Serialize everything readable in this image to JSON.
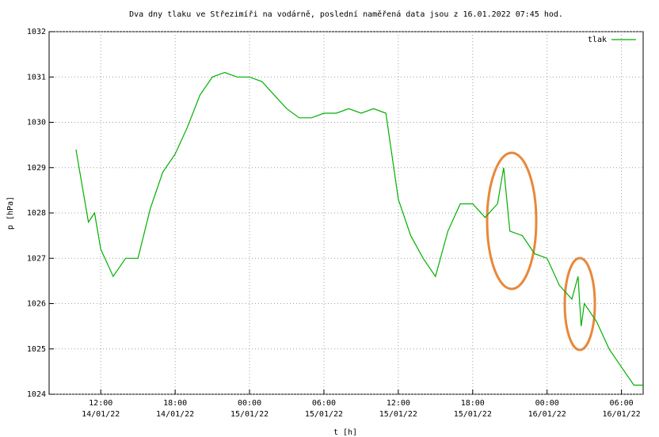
{
  "chart_data": {
    "type": "line",
    "title": "Dva dny tlaku ve Střezimíři na vodárně, poslední naměřená data jsou z 16.01.2022 07:45 hod.",
    "x_label": "t [h]",
    "y_label": "p [hPa]",
    "x": [
      "14/01/22 10:00",
      "14/01/22 11:00",
      "14/01/22 11:30",
      "14/01/22 12:00",
      "14/01/22 13:00",
      "14/01/22 14:00",
      "14/01/22 15:00",
      "14/01/22 16:00",
      "14/01/22 17:00",
      "14/01/22 18:00",
      "14/01/22 19:00",
      "14/01/22 20:00",
      "14/01/22 21:00",
      "14/01/22 22:00",
      "14/01/22 23:00",
      "15/01/22 00:00",
      "15/01/22 01:00",
      "15/01/22 02:00",
      "15/01/22 03:00",
      "15/01/22 04:00",
      "15/01/22 05:00",
      "15/01/22 06:00",
      "15/01/22 07:00",
      "15/01/22 08:00",
      "15/01/22 09:00",
      "15/01/22 10:00",
      "15/01/22 11:00",
      "15/01/22 12:00",
      "15/01/22 13:00",
      "15/01/22 14:00",
      "15/01/22 15:00",
      "15/01/22 16:00",
      "15/01/22 17:00",
      "15/01/22 18:00",
      "15/01/22 19:00",
      "15/01/22 20:00",
      "15/01/22 20:30",
      "15/01/22 21:00",
      "15/01/22 22:00",
      "15/01/22 23:00",
      "16/01/22 00:00",
      "16/01/22 01:00",
      "16/01/22 02:00",
      "16/01/22 02:30",
      "16/01/22 02:45",
      "16/01/22 03:00",
      "16/01/22 04:00",
      "16/01/22 05:00",
      "16/01/22 06:00",
      "16/01/22 07:00",
      "16/01/22 07:45"
    ],
    "series": [
      {
        "name": "tlak",
        "color": "#00b000",
        "values": [
          1029.4,
          1027.8,
          1028.0,
          1027.2,
          1026.6,
          1027.0,
          1027.0,
          1028.1,
          1028.9,
          1029.3,
          1029.9,
          1030.6,
          1031.0,
          1031.1,
          1031.0,
          1031.0,
          1030.9,
          1030.6,
          1030.3,
          1030.1,
          1030.1,
          1030.2,
          1030.2,
          1030.3,
          1030.2,
          1030.3,
          1030.2,
          1028.3,
          1027.5,
          1027.0,
          1026.6,
          1027.6,
          1028.2,
          1028.2,
          1027.9,
          1028.2,
          1029.0,
          1027.6,
          1027.5,
          1027.1,
          1027.0,
          1026.4,
          1026.1,
          1026.6,
          1025.5,
          1026.0,
          1025.6,
          1025.0,
          1024.6,
          1024.2,
          1024.2
        ]
      }
    ],
    "xlim": [
      "14/01/22 07:50",
      "16/01/22 07:45"
    ],
    "xticks": [
      {
        "value": "14/01/22 12:00",
        "label": [
          "12:00",
          "14/01/22"
        ]
      },
      {
        "value": "14/01/22 18:00",
        "label": [
          "18:00",
          "14/01/22"
        ]
      },
      {
        "value": "15/01/22 00:00",
        "label": [
          "00:00",
          "15/01/22"
        ]
      },
      {
        "value": "15/01/22 06:00",
        "label": [
          "06:00",
          "15/01/22"
        ]
      },
      {
        "value": "15/01/22 12:00",
        "label": [
          "12:00",
          "15/01/22"
        ]
      },
      {
        "value": "15/01/22 18:00",
        "label": [
          "18:00",
          "15/01/22"
        ]
      },
      {
        "value": "16/01/22 00:00",
        "label": [
          "00:00",
          "16/01/22"
        ]
      },
      {
        "value": "16/01/22 06:00",
        "label": [
          "06:00",
          "16/01/22"
        ]
      }
    ],
    "ylim": [
      1024,
      1032
    ],
    "yticks": [
      1024,
      1025,
      1026,
      1027,
      1028,
      1029,
      1030,
      1031,
      1032
    ],
    "grid": true,
    "legend": "top-right"
  }
}
